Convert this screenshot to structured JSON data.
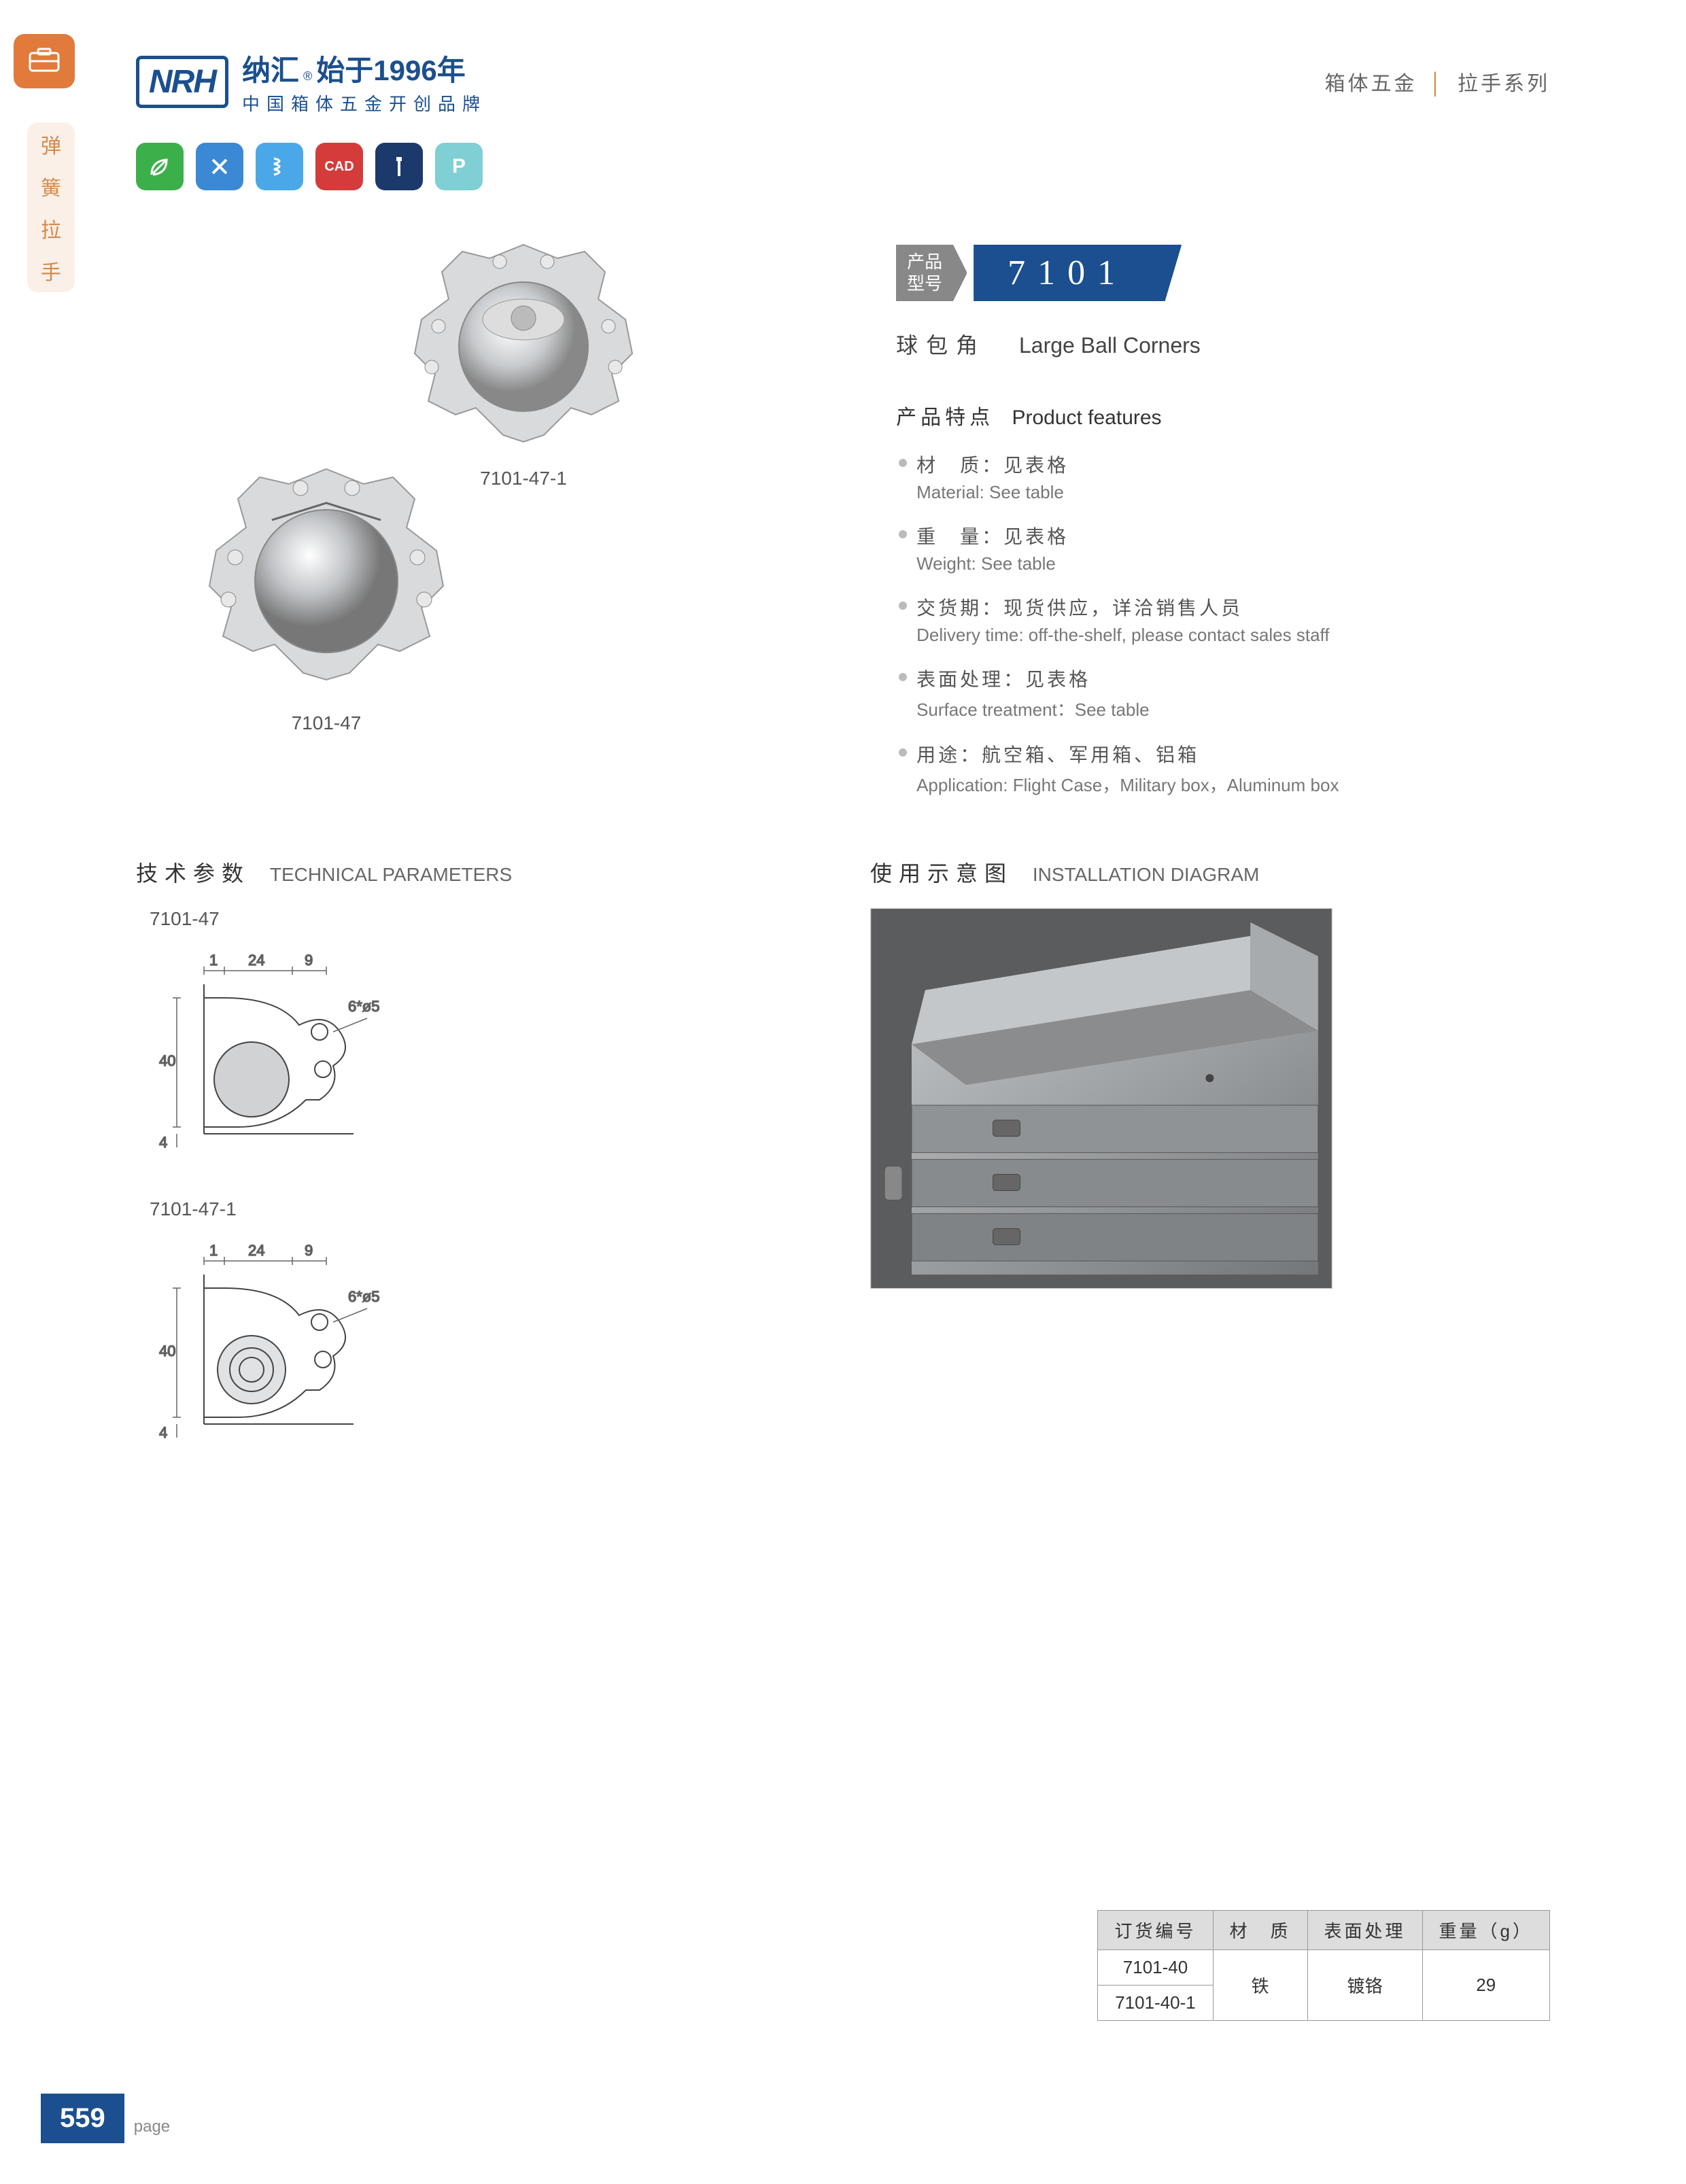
{
  "header": {
    "logo": "NRH",
    "brand_cn": "纳汇",
    "brand_r": "®",
    "brand_since": "始于1996年",
    "brand_sub": "中国箱体五金开创品牌",
    "category": "箱体五金",
    "series": "拉手系列"
  },
  "side_tab": [
    "弹",
    "簧",
    "拉",
    "手"
  ],
  "badges": [
    "leaf-icon",
    "tools-icon",
    "spring-icon",
    "cad-icon",
    "screw-icon",
    "p-icon"
  ],
  "badge_labels": [
    "",
    "✕",
    "§",
    "CAD",
    "T",
    "P"
  ],
  "badge_colors": [
    "#3bb04a",
    "#3b88d4",
    "#4aa8e8",
    "#d43b3b",
    "#1b3a6b",
    "#7fcfd4"
  ],
  "product": {
    "code_label1": "产品",
    "code_label2": "型号",
    "code": "7101",
    "name_cn": "球包角",
    "name_en": "Large Ball Corners",
    "img1_caption": "7101-47-1",
    "img2_caption": "7101-47"
  },
  "features": {
    "title_cn": "产品特点",
    "title_en": "Product features",
    "items": [
      {
        "cn": "材　质：见表格",
        "en": "Material: See table"
      },
      {
        "cn": "重　量：见表格",
        "en": "Weight: See table"
      },
      {
        "cn": "交货期：现货供应，详洽销售人员",
        "en": "Delivery time: off-the-shelf, please contact sales staff"
      },
      {
        "cn": "表面处理：见表格",
        "en": "Surface treatment：See table"
      },
      {
        "cn": "用途：航空箱、军用箱、铝箱",
        "en": "Application: Flight Case，Military box，Aluminum box"
      }
    ]
  },
  "tech": {
    "title_cn": "技术参数",
    "title_en": "TECHNICAL PARAMETERS",
    "d1_label": "7101-47",
    "d2_label": "7101-47-1",
    "dims": {
      "a": "1",
      "b": "24",
      "c": "9",
      "h": "40",
      "t": "4",
      "hole": "6*ø5"
    }
  },
  "install": {
    "title_cn": "使用示意图",
    "title_en": "INSTALLATION DIAGRAM"
  },
  "table": {
    "headers": [
      "订货编号",
      "材　质",
      "表面处理",
      "重量（g）"
    ],
    "rows": [
      [
        "7101-40",
        "铁",
        "镀铬",
        "29"
      ],
      [
        "7101-40-1",
        "",
        "",
        ""
      ]
    ]
  },
  "page_num": "559",
  "page_label": "page"
}
